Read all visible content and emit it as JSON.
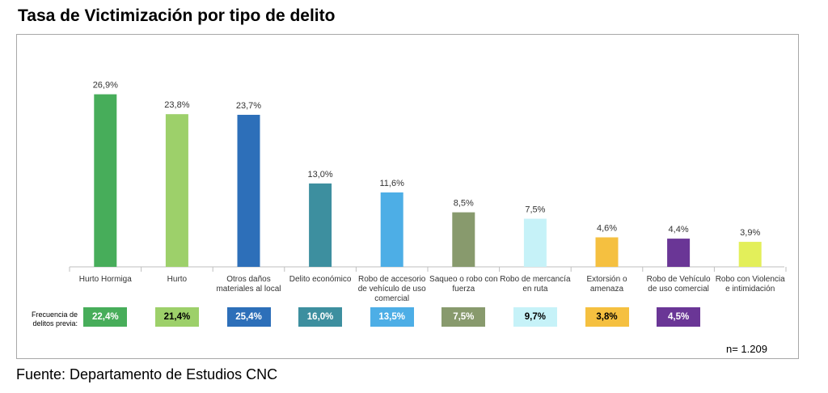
{
  "title": "Tasa de Victimización por tipo de delito",
  "source": "Fuente: Departamento de Estudios CNC",
  "sample_note": "n= 1.209",
  "previous_label": "Frecuencia de delitos previa:",
  "chart_data": {
    "type": "bar",
    "title": "Tasa de Victimización por tipo de delito",
    "categories": [
      "Hurto Hormiga",
      "Hurto",
      "Otros daños materiales al local",
      "Delito económico",
      "Robo de accesorio de vehículo de uso comercial",
      "Saqueo o robo con fuerza",
      "Robo de mercancía en ruta",
      "Extorsión o amenaza",
      "Robo de Vehículo de uso comercial",
      "Robo con Violencia e intimidación"
    ],
    "values": [
      26.9,
      23.8,
      23.7,
      13.0,
      11.6,
      8.5,
      7.5,
      4.6,
      4.4,
      3.9
    ],
    "value_labels": [
      "26,9%",
      "23,8%",
      "23,7%",
      "13,0%",
      "11,6%",
      "8,5%",
      "7,5%",
      "4,6%",
      "4,4%",
      "3,9%"
    ],
    "colors": [
      "#47ad5a",
      "#9dd06a",
      "#2d6fb9",
      "#3d8f9f",
      "#4daee6",
      "#889a6d",
      "#c6f2f8",
      "#f5c040",
      "#6a3696",
      "#e3ef5a"
    ],
    "ylim": [
      0,
      30
    ],
    "grid": false,
    "xlabel": "",
    "ylabel": "",
    "previous_frequency": {
      "labels": [
        "22,4%",
        "21,4%",
        "25,4%",
        "16,0%",
        "13,5%",
        "7,5%",
        "9,7%",
        "3,8%",
        "4,5%"
      ],
      "colors": [
        "#47ad5a",
        "#9dd06a",
        "#2d6fb9",
        "#3d8f9f",
        "#4daee6",
        "#889a6d",
        "#c6f2f8",
        "#f5c040",
        "#6a3696"
      ],
      "text_colors": [
        "#ffffff",
        "#000000",
        "#ffffff",
        "#ffffff",
        "#ffffff",
        "#ffffff",
        "#000000",
        "#000000",
        "#ffffff"
      ]
    }
  }
}
